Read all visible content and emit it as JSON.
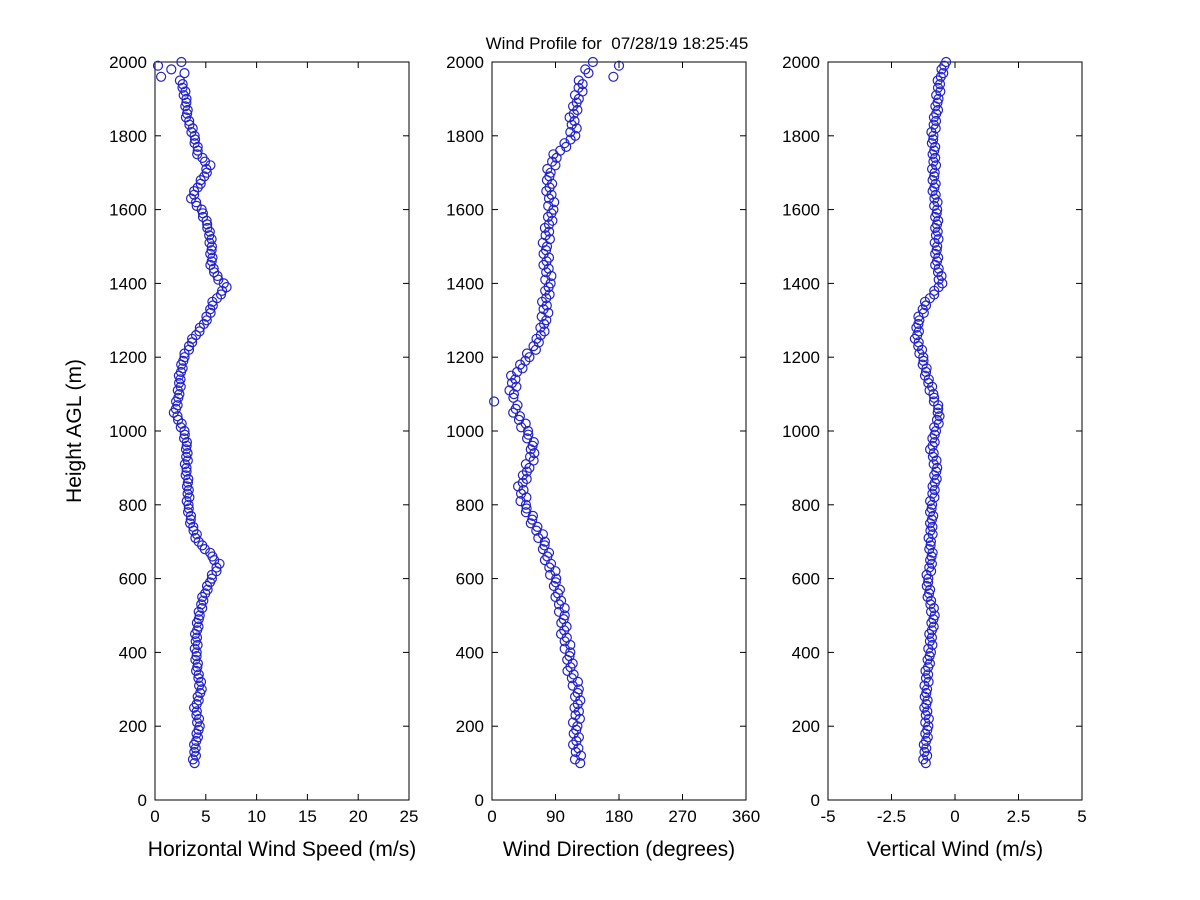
{
  "figure": {
    "background": "#ffffff"
  },
  "chart_data": {
    "type": "scatter",
    "title": "Wind Profile for  07/28/19 18:25:45",
    "marker": "open-circle",
    "marker_color": "#2222cc",
    "axis_color": "#000000",
    "grid": false,
    "legend": "none",
    "shared_y": {
      "label": "Height AGL (m)",
      "lim": [
        0,
        2000
      ],
      "ticks": [
        0,
        200,
        400,
        600,
        800,
        1000,
        1200,
        1400,
        1600,
        1800,
        2000
      ],
      "values": [
        100,
        110,
        120,
        130,
        140,
        150,
        160,
        170,
        180,
        190,
        200,
        210,
        220,
        230,
        240,
        250,
        260,
        270,
        280,
        290,
        300,
        310,
        320,
        330,
        340,
        350,
        360,
        370,
        380,
        390,
        400,
        410,
        420,
        430,
        440,
        450,
        460,
        470,
        480,
        490,
        500,
        510,
        520,
        530,
        540,
        550,
        560,
        570,
        580,
        590,
        600,
        610,
        620,
        630,
        640,
        650,
        660,
        670,
        680,
        690,
        700,
        710,
        720,
        730,
        740,
        750,
        760,
        770,
        780,
        790,
        800,
        810,
        820,
        830,
        840,
        850,
        860,
        870,
        880,
        890,
        900,
        910,
        920,
        930,
        940,
        950,
        960,
        970,
        980,
        990,
        1000,
        1010,
        1020,
        1030,
        1040,
        1050,
        1060,
        1070,
        1080,
        1090,
        1100,
        1110,
        1120,
        1130,
        1140,
        1150,
        1160,
        1170,
        1180,
        1190,
        1200,
        1210,
        1220,
        1230,
        1240,
        1250,
        1260,
        1270,
        1280,
        1290,
        1300,
        1310,
        1320,
        1330,
        1340,
        1350,
        1360,
        1370,
        1380,
        1390,
        1400,
        1410,
        1420,
        1430,
        1440,
        1450,
        1460,
        1470,
        1480,
        1490,
        1500,
        1510,
        1520,
        1530,
        1540,
        1550,
        1560,
        1570,
        1580,
        1590,
        1600,
        1610,
        1620,
        1630,
        1640,
        1650,
        1660,
        1670,
        1680,
        1690,
        1700,
        1710,
        1720,
        1730,
        1740,
        1750,
        1760,
        1770,
        1780,
        1790,
        1800,
        1810,
        1820,
        1830,
        1840,
        1850,
        1860,
        1870,
        1880,
        1890,
        1900,
        1910,
        1920,
        1930,
        1940,
        1950,
        1960,
        1970,
        1980,
        1990,
        2000
      ]
    },
    "panels": [
      {
        "name": "horizontal-wind-speed",
        "xlabel": "Horizontal Wind Speed (m/s)",
        "xlim": [
          0,
          25
        ],
        "xticks": [
          0,
          5,
          10,
          15,
          20,
          25
        ],
        "values": [
          3.9,
          3.74,
          4.03,
          3.87,
          4.01,
          3.85,
          4.06,
          4.22,
          4.08,
          4.29,
          4.4,
          4.14,
          4.33,
          4.07,
          4.11,
          3.85,
          4.1,
          4.3,
          4.2,
          4.45,
          4.6,
          4.34,
          4.53,
          4.27,
          4.31,
          4.05,
          4.16,
          4.22,
          3.98,
          4.09,
          4.1,
          3.92,
          4.19,
          4.01,
          4.13,
          3.95,
          4.14,
          4.28,
          4.12,
          4.31,
          4.4,
          4.3,
          4.65,
          4.55,
          4.75,
          4.65,
          4.94,
          5.18,
          5.12,
          5.41,
          5.6,
          5.6,
          6.05,
          6.05,
          6.35,
          5.83,
          5.65,
          5.43,
          4.9,
          4.65,
          4.3,
          3.98,
          4.11,
          3.79,
          3.77,
          3.45,
          3.52,
          3.54,
          3.26,
          3.33,
          3.3,
          3.12,
          3.39,
          3.21,
          3.33,
          3.15,
          3.24,
          3.28,
          3.02,
          3.11,
          3.1,
          2.94,
          3.23,
          3.07,
          3.21,
          3.05,
          3.12,
          3.14,
          2.86,
          2.93,
          2.9,
          2.54,
          2.63,
          2.27,
          2.21,
          1.85,
          2.06,
          2.22,
          2.08,
          2.29,
          2.4,
          2.24,
          2.53,
          2.37,
          2.51,
          2.35,
          2.56,
          2.72,
          2.58,
          2.79,
          2.9,
          2.9,
          3.35,
          3.35,
          3.65,
          3.65,
          4.04,
          4.38,
          4.42,
          4.81,
          5.1,
          5.06,
          5.47,
          5.43,
          5.69,
          5.65,
          6.1,
          6.5,
          6.6,
          7.05,
          6.77,
          6.23,
          6.15,
          5.82,
          5.78,
          5.45,
          5.58,
          5.66,
          5.44,
          5.57,
          5.6,
          5.36,
          5.57,
          5.33,
          5.39,
          5.15,
          5.14,
          5.08,
          4.72,
          4.71,
          4.6,
          4.1,
          4.05,
          3.55,
          3.85,
          3.85,
          4.2,
          4.5,
          4.5,
          4.85,
          5.1,
          5.05,
          5.45,
          4.92,
          4.68,
          4.15,
          4.2,
          4.2,
          3.9,
          3.95,
          3.9,
          3.58,
          3.71,
          3.39,
          3.37,
          3.05,
          3.16,
          3.22,
          2.98,
          3.09,
          3.1,
          2.82,
          2.99,
          2.71,
          2.73,
          2.45,
          0.6,
          2.9,
          1.6,
          0.3,
          2.6
        ]
      },
      {
        "name": "wind-direction",
        "xlabel": "Wind Direction (degrees)",
        "xlim": [
          0,
          360
        ],
        "xticks": [
          0,
          90,
          180,
          270,
          360
        ],
        "values": [
          125,
          117.6,
          126.2,
          118.8,
          122.4,
          115,
          119.6,
          123.2,
          115.8,
          119.4,
          121,
          114.8,
          124.6,
          118.4,
          123.2,
          117,
          121.6,
          125.2,
          117.8,
          121.4,
          123,
          114.4,
          121.8,
          113.2,
          115.6,
          107,
          111.2,
          114.4,
          106.6,
          109.8,
          111,
          103,
          111,
          103,
          106,
          98,
          102.4,
          105.8,
          98.2,
          101.6,
          103,
          95,
          103,
          95,
          98,
          90,
          93.6,
          96.2,
          87.8,
          90.4,
          91,
          82.4,
          89.8,
          81.2,
          83.6,
          75,
          78.4,
          80.8,
          72.2,
          74.6,
          75,
          65.6,
          72.2,
          62.8,
          64.4,
          55,
          57,
          58,
          48,
          49,
          48,
          40.4,
          48.8,
          41.2,
          44.6,
          37,
          43.6,
          49.2,
          43.8,
          49.4,
          53,
          48,
          59,
          54,
          60,
          55,
          57.6,
          59.2,
          49.8,
          51.4,
          51,
          41.4,
          47.8,
          38.2,
          39.6,
          30,
          33.6,
          36.2,
          3,
          30.4,
          31,
          24.8,
          34.6,
          28.4,
          33.2,
          27,
          35.6,
          43.2,
          39.8,
          47.4,
          53,
          49.6,
          62.2,
          58.8,
          66.4,
          63,
          69.2,
          74.4,
          68.6,
          73.8,
          77,
          70.4,
          79.8,
          73.2,
          77.6,
          71,
          76.8,
          81.6,
          75.4,
          80.2,
          83,
          75.6,
          84.2,
          76.8,
          80.4,
          73,
          77.4,
          80.8,
          73.2,
          76.6,
          78,
          72,
          82,
          76,
          81,
          75,
          80.8,
          85.6,
          79.4,
          84.2,
          87,
          79.6,
          88.2,
          80.8,
          84.4,
          77,
          81.6,
          85.2,
          77.8,
          81.4,
          83,
          78.4,
          89.8,
          85.2,
          91.6,
          87,
          96.6,
          105.2,
          102.8,
          111.4,
          118,
          111,
          120,
          113,
          117,
          110,
          116,
          121,
          115,
          120,
          123,
          117.6,
          128.2,
          122.8,
          128.4,
          123,
          172,
          136.8,
          132.2,
          180,
          143
        ]
      },
      {
        "name": "vertical-wind",
        "xlabel": "Vertical Wind (m/s)",
        "xlim": [
          -5,
          5
        ],
        "xticks": [
          -5,
          -2.5,
          0,
          2.5,
          5
        ],
        "values": [
          -1.15,
          -1.25,
          -1.1,
          -1.2,
          -1.13,
          -1.23,
          -1.14,
          -1.07,
          -1.17,
          -1.09,
          -1.05,
          -1.17,
          -1.03,
          -1.15,
          -1.09,
          -1.21,
          -1.13,
          -1.08,
          -1.19,
          -1.13,
          -1.1,
          -1.2,
          -1.04,
          -1.14,
          -1.06,
          -1.16,
          -1.06,
          -0.99,
          -1.08,
          -1.0,
          -0.95,
          -1.05,
          -0.89,
          -0.99,
          -0.91,
          -1.01,
          -0.91,
          -0.84,
          -0.93,
          -0.85,
          -0.8,
          -0.94,
          -0.83,
          -0.97,
          -0.94,
          -1.08,
          -1.02,
          -0.98,
          -1.11,
          -1.06,
          -1.05,
          -1.12,
          -0.94,
          -1.01,
          -0.91,
          -0.98,
          -0.92,
          -0.88,
          -1.01,
          -0.96,
          -0.95,
          -1.04,
          -0.88,
          -0.97,
          -0.89,
          -0.98,
          -0.91,
          -0.86,
          -0.98,
          -0.92,
          -0.9,
          -0.98,
          -0.81,
          -0.89,
          -0.8,
          -0.88,
          -0.79,
          -0.72,
          -0.82,
          -0.74,
          -0.7,
          -0.84,
          -0.73,
          -0.87,
          -0.84,
          -0.98,
          -0.88,
          -0.8,
          -0.89,
          -0.8,
          -0.75,
          -0.82,
          -0.64,
          -0.71,
          -0.61,
          -0.68,
          -0.66,
          -0.66,
          -0.83,
          -0.82,
          -0.85,
          -1.0,
          -0.9,
          -1.05,
          -1.03,
          -1.18,
          -1.14,
          -1.12,
          -1.27,
          -1.24,
          -1.25,
          -1.4,
          -1.3,
          -1.45,
          -1.43,
          -1.58,
          -1.49,
          -1.42,
          -1.52,
          -1.44,
          -1.4,
          -1.44,
          -1.23,
          -1.27,
          -1.14,
          -1.18,
          -0.99,
          -0.82,
          -0.82,
          -0.64,
          -0.5,
          -0.64,
          -0.53,
          -0.67,
          -0.64,
          -0.78,
          -0.71,
          -0.66,
          -0.78,
          -0.72,
          -0.7,
          -0.8,
          -0.65,
          -0.75,
          -0.68,
          -0.78,
          -0.71,
          -0.66,
          -0.78,
          -0.72,
          -0.7,
          -0.82,
          -0.69,
          -0.81,
          -0.76,
          -0.88,
          -0.81,
          -0.76,
          -0.88,
          -0.82,
          -0.8,
          -0.9,
          -0.75,
          -0.85,
          -0.78,
          -0.88,
          -0.82,
          -0.78,
          -0.91,
          -0.86,
          -0.85,
          -0.93,
          -0.76,
          -0.84,
          -0.75,
          -0.83,
          -0.74,
          -0.67,
          -0.77,
          -0.69,
          -0.65,
          -0.74,
          -0.58,
          -0.67,
          -0.59,
          -0.68,
          -0.56,
          -0.46,
          -0.53,
          -0.42,
          -0.35
        ]
      }
    ]
  }
}
